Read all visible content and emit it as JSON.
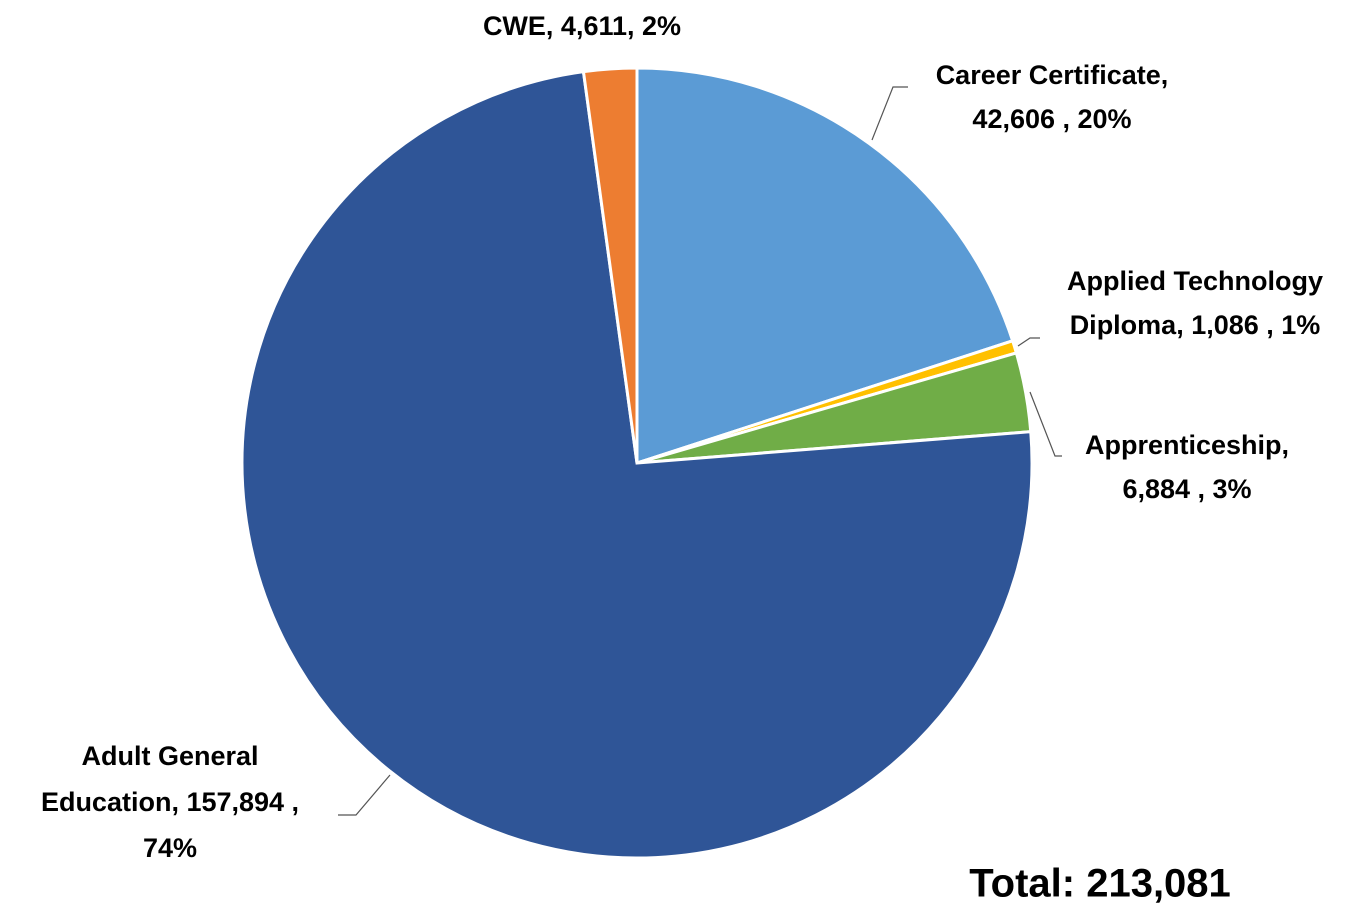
{
  "chart_data": {
    "type": "pie",
    "categories": [
      "Career Certificate",
      "Applied Technology Diploma",
      "Apprenticeship",
      "Adult General Education",
      "CWE"
    ],
    "values": [
      42606,
      1086,
      6884,
      157894,
      4611
    ],
    "colors": [
      "#5b9bd5",
      "#ffc000",
      "#70ad47",
      "#2f5597",
      "#ed7d31"
    ],
    "data_labels": [
      [
        "Career Certificate,",
        "42,606 , 20%"
      ],
      [
        "Applied Technology",
        "Diploma,  1,086 , 1%"
      ],
      [
        "Apprenticeship,",
        "6,884 , 3%"
      ],
      [
        "Adult General",
        "Education,  157,894 ,",
        "74%"
      ],
      [
        "CWE, 4,611, 2%"
      ]
    ],
    "annotation": "Total: 213,081"
  }
}
